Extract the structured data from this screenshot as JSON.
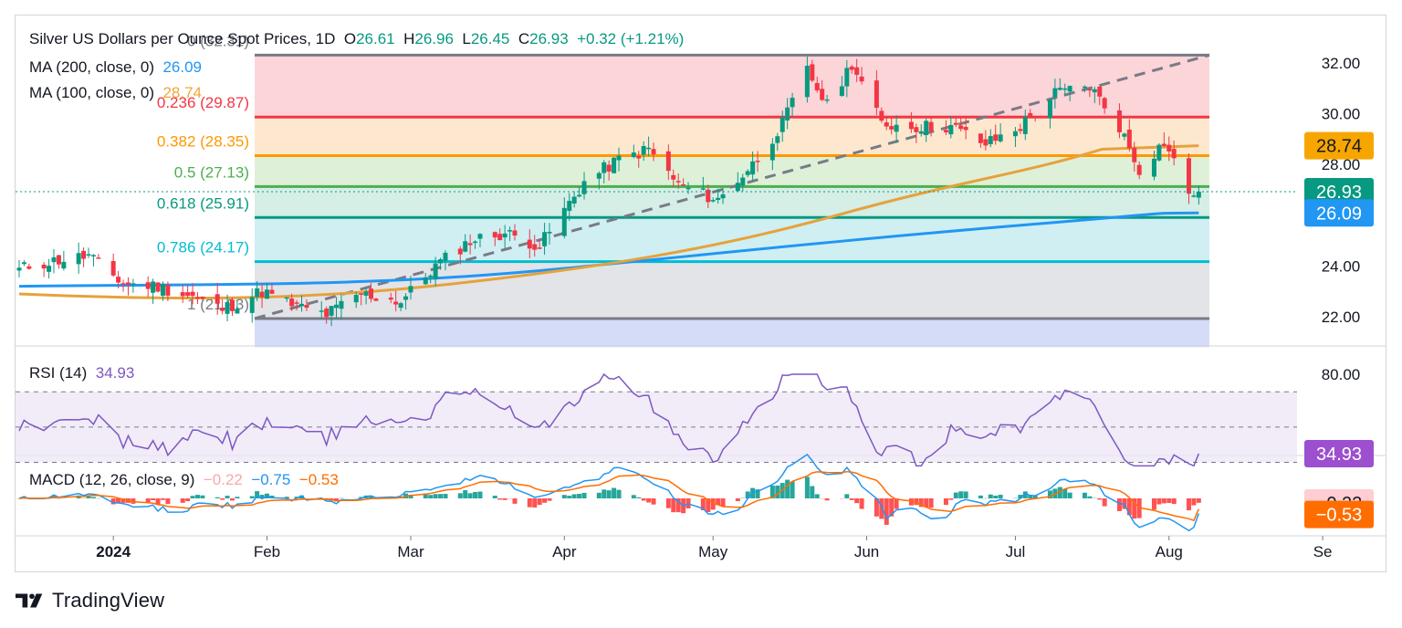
{
  "header": {
    "symbol": "Silver US Dollars per Ounce Spot Prices, 1D",
    "open_label": "O",
    "open": "26.61",
    "high_label": "H",
    "high": "26.96",
    "low_label": "L",
    "low": "26.45",
    "close_label": "C",
    "close": "26.93",
    "change": "+0.32 (+1.21%)"
  },
  "ma200": {
    "label": "MA (200, close, 0)",
    "value": "26.09"
  },
  "ma100": {
    "label": "MA (100, close, 0)",
    "value": "28.74"
  },
  "rsi_legend": {
    "label": "RSI (14)",
    "value": "34.93"
  },
  "macd_legend": {
    "label": "MACD (12, 26, close, 9)",
    "hist": "−0.22",
    "macd": "−0.75",
    "signal": "−0.53"
  },
  "branding": {
    "name": "TradingView"
  },
  "colors": {
    "up": "#089981",
    "down": "#f23645",
    "ma200": "#2196f3",
    "ma100": "#e6a23c",
    "rsi": "#7e57c2",
    "macd": "#2196f3",
    "signal": "#ff6d00",
    "hist_up": "#26a69a",
    "hist_up_light": "#b2dfdb",
    "hist_down": "#ff5252",
    "hist_down_light": "#ffcdd2"
  },
  "chart_data": {
    "type": "candlestick",
    "title": "Silver US Dollars per Ounce Spot Prices, 1D",
    "price_axis": {
      "ticks": [
        "32.00",
        "30.00",
        "28.00",
        "24.00",
        "22.00"
      ],
      "range": [
        20.8,
        33.0
      ]
    },
    "x_axis": {
      "labels": [
        "2024",
        "Feb",
        "Mar",
        "Apr",
        "May",
        "Jun",
        "Jul",
        "Aug",
        "Se"
      ],
      "start_date": "2023-12-13"
    },
    "fibonacci": {
      "top_label": "0 (32.31)",
      "bottom_label": "1 (21.93)",
      "levels": [
        {
          "label": "0.236 (29.87)",
          "value": 29.87,
          "color": "#f23645"
        },
        {
          "label": "0.382 (28.35)",
          "value": 28.35,
          "color": "#ff9800"
        },
        {
          "label": "0.5 (27.13)",
          "value": 27.13,
          "color": "#4caf50"
        },
        {
          "label": "0.618 (25.91)",
          "value": 25.91,
          "color": "#089981"
        },
        {
          "label": "0.786 (24.17)",
          "value": 24.17,
          "color": "#00bcd4"
        }
      ],
      "top": 32.31,
      "bottom": 21.93
    },
    "trendline": {
      "from": [
        "2024-02-28",
        21.93
      ],
      "to": [
        "2024-08-16",
        32.31
      ]
    },
    "closes": [
      [
        "2023-12-13",
        23.85
      ],
      [
        "2023-12-15",
        24.0
      ],
      [
        "2023-12-20",
        24.2
      ],
      [
        "2023-12-27",
        24.4
      ],
      [
        "2024-01-03",
        23.3
      ],
      [
        "2024-01-10",
        23.2
      ],
      [
        "2024-01-17",
        22.8
      ],
      [
        "2024-01-23",
        22.3
      ],
      [
        "2024-01-31",
        23.0
      ],
      [
        "2024-02-07",
        22.4
      ],
      [
        "2024-02-13",
        22.1
      ],
      [
        "2024-02-20",
        22.9
      ],
      [
        "2024-02-28",
        22.6
      ],
      [
        "2024-03-06",
        24.0
      ],
      [
        "2024-03-13",
        25.0
      ],
      [
        "2024-03-20",
        25.3
      ],
      [
        "2024-03-27",
        24.8
      ],
      [
        "2024-04-05",
        27.3
      ],
      [
        "2024-04-12",
        28.2
      ],
      [
        "2024-04-18",
        28.6
      ],
      [
        "2024-04-24",
        27.2
      ],
      [
        "2024-05-02",
        26.6
      ],
      [
        "2024-05-09",
        28.0
      ],
      [
        "2024-05-15",
        29.6
      ],
      [
        "2024-05-20",
        31.7
      ],
      [
        "2024-05-24",
        30.3
      ],
      [
        "2024-05-29",
        32.0
      ],
      [
        "2024-06-04",
        29.6
      ],
      [
        "2024-06-11",
        29.5
      ],
      [
        "2024-06-18",
        29.5
      ],
      [
        "2024-06-25",
        28.8
      ],
      [
        "2024-07-02",
        29.5
      ],
      [
        "2024-07-09",
        30.8
      ],
      [
        "2024-07-16",
        31.1
      ],
      [
        "2024-07-22",
        29.5
      ],
      [
        "2024-07-26",
        27.8
      ],
      [
        "2024-07-31",
        28.9
      ],
      [
        "2024-08-05",
        26.9
      ],
      [
        "2024-08-07",
        26.93
      ]
    ],
    "ma200": {
      "label": "MA (200, close, 0)",
      "last": 26.09
    },
    "ma100": {
      "label": "MA (100, close, 0)",
      "last": 28.74
    },
    "rsi": {
      "label": "RSI (14)",
      "last": 34.93,
      "ticks": [
        "80.00"
      ],
      "bands": [
        30,
        70
      ]
    },
    "macd": {
      "label": "MACD (12, 26, close, 9)",
      "histogram": -0.22,
      "macd": -0.75,
      "signal": -0.53
    },
    "badges": [
      {
        "label": "28.74",
        "color": "#f7a600"
      },
      {
        "label": "26.93",
        "color": "#089981"
      },
      {
        "label": "26.09",
        "color": "#2196f3"
      },
      {
        "label": "34.93",
        "color": "#9c4fcf"
      },
      {
        "label": "−0.22",
        "color": "#ffcdd2"
      },
      {
        "label": "−0.53",
        "color": "#ff6d00"
      }
    ]
  }
}
